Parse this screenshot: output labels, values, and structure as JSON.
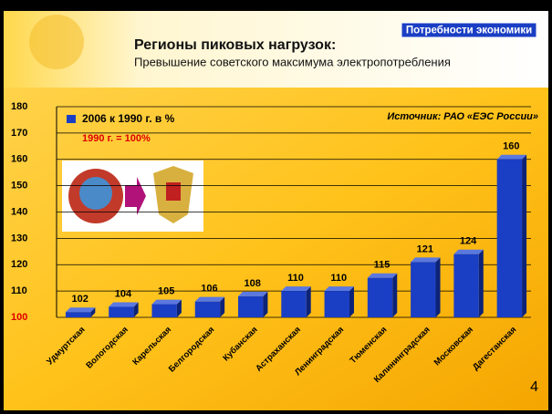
{
  "badge": "Потребности экономики",
  "page_number": "4",
  "chart_data": {
    "type": "bar",
    "title": "Регионы пиковых нагрузок:",
    "subtitle": "Превышение советского максимума электропотребления",
    "legend_label": "2006 к 1990 г. в %",
    "note": "1990 г. = 100%",
    "source": "Источник: РАО «ЕЭС России»",
    "categories": [
      "Удмуртская",
      "Вологодская",
      "Карельская",
      "Белгородская",
      "Кубанская",
      "Астраханская",
      "Ленинградская",
      "Тюменская",
      "Калининградская",
      "Московская",
      "Дагестанская"
    ],
    "values": [
      102,
      104,
      105,
      106,
      108,
      110,
      110,
      115,
      121,
      124,
      160
    ],
    "color": "#1a3fc4",
    "ylim": [
      100,
      180
    ],
    "yticks": [
      100,
      110,
      120,
      130,
      140,
      150,
      160,
      170,
      180
    ],
    "grid": true
  }
}
